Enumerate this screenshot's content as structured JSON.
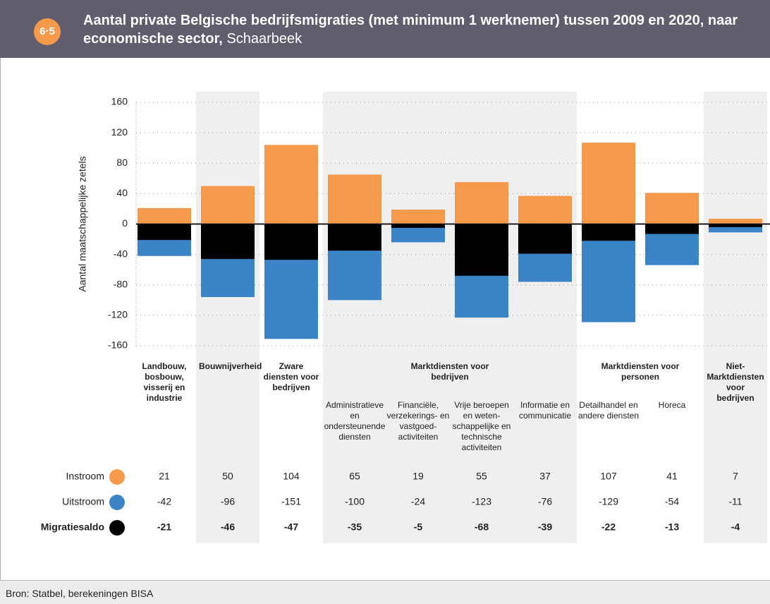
{
  "chart_data": {
    "type": "bar",
    "figure_number": "6·5",
    "title": "Aantal private Belgische bedrijfsmigraties (met minimum 1 werknemer) tussen 2009 en 2020, naar economische sector,",
    "subtitle": "Schaarbeek",
    "y_label": "Aantal maatschappelijke zetels",
    "groups": [
      {
        "label": "Landbouw, bosbouw, visserij en industrie",
        "size": 1
      },
      {
        "label": "Bouwnijverheid",
        "size": 1
      },
      {
        "label": "Zware diensten voor bedrijven",
        "size": 1
      },
      {
        "label": "Marktdiensten voor bedrijven",
        "size": 4
      },
      {
        "label": "Marktdiensten voor personen",
        "size": 2
      },
      {
        "label": "Niet-Marktdiensten voor bedrijven",
        "size": 1
      }
    ],
    "categories": [
      null,
      null,
      null,
      "Administratieve en ondersteunende diensten",
      "Financiële, verzekerings- en vastgoed-activiteiten",
      "Vrije beroepen en weten-schappelijke en technische activiteiten",
      "Informatie en communicatie",
      "Detailhandel en andere diensten",
      "Horeca",
      null
    ],
    "series": [
      {
        "name": "Instroom",
        "color": "#f5994b",
        "values": [
          21,
          50,
          104,
          65,
          19,
          55,
          37,
          107,
          41,
          7
        ]
      },
      {
        "name": "Uitstroom",
        "color": "#3b84c8",
        "values": [
          -42,
          -96,
          -151,
          -100,
          -24,
          -123,
          -76,
          -129,
          -54,
          -11
        ]
      },
      {
        "name": "Migratiesaldo",
        "color": "#000000",
        "values": [
          -21,
          -46,
          -47,
          -35,
          -5,
          -68,
          -39,
          -22,
          -13,
          -4
        ]
      }
    ],
    "ylim": [
      -160,
      160
    ],
    "yticks": [
      -160,
      -120,
      -80,
      -40,
      0,
      40,
      80,
      120,
      160
    ],
    "grid": true,
    "source": "Bron: Statbel, berekeningen BISA"
  }
}
